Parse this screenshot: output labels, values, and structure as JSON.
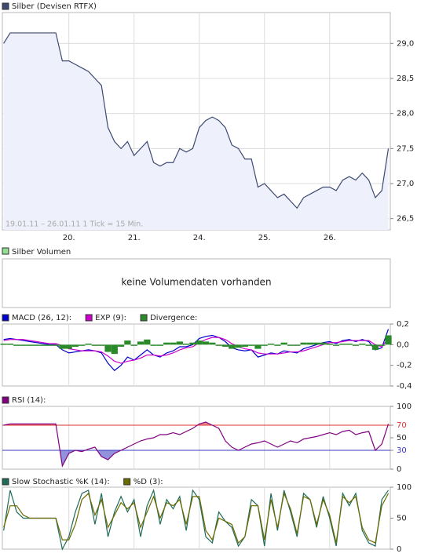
{
  "chart_data": [
    {
      "type": "area",
      "annotation": "19.01.11 – 26.01.11   1 Tick = 15 Min.",
      "x": [
        0,
        0.1,
        0.2,
        0.3,
        0.4,
        0.5,
        0.6,
        0.7,
        0.8,
        0.9,
        1,
        1.1,
        1.2,
        1.3,
        1.4,
        1.5,
        1.6,
        1.7,
        1.8,
        1.9,
        2,
        2.1,
        2.2,
        2.3,
        2.4,
        2.5,
        2.6,
        2.7,
        2.8,
        2.9,
        3,
        3.1,
        3.2,
        3.3,
        3.4,
        3.5,
        3.6,
        3.7,
        3.8,
        3.9,
        4,
        4.1,
        4.2,
        4.3,
        4.4,
        4.5,
        4.6,
        4.7,
        4.8,
        4.9,
        5,
        5.1,
        5.2,
        5.3,
        5.4,
        5.5,
        5.6,
        5.7,
        5.8,
        5.9
      ],
      "series": [
        {
          "name": "Silber (Devisen RTFX)",
          "color": "#3d4a70",
          "fill_color": "#eef0fb",
          "values": [
            29.0,
            29.15,
            29.15,
            29.15,
            29.15,
            29.15,
            29.15,
            29.15,
            29.15,
            28.75,
            28.75,
            28.7,
            28.65,
            28.6,
            28.5,
            28.4,
            27.8,
            27.6,
            27.5,
            27.6,
            27.4,
            27.5,
            27.6,
            27.3,
            27.25,
            27.3,
            27.3,
            27.5,
            27.45,
            27.5,
            27.8,
            27.9,
            27.95,
            27.9,
            27.8,
            27.55,
            27.5,
            27.35,
            27.35,
            26.95,
            27.0,
            26.9,
            26.8,
            26.85,
            26.75,
            26.65,
            26.8,
            26.85,
            26.9,
            26.95,
            26.95,
            26.9,
            27.05,
            27.1,
            27.05,
            27.15,
            27.05,
            26.8,
            26.9,
            27.5
          ]
        }
      ],
      "xlim": [
        -0.02,
        5.93
      ],
      "xticks": [
        {
          "value": 1,
          "label": "20."
        },
        {
          "value": 2,
          "label": "21."
        },
        {
          "value": 3,
          "label": "24."
        },
        {
          "value": 4,
          "label": "25."
        },
        {
          "value": 5,
          "label": "26."
        }
      ],
      "ylim": [
        26.34,
        29.44
      ],
      "yticks": [
        {
          "value": 26.5,
          "label": "26,5"
        },
        {
          "value": 27.0,
          "label": "27,0"
        },
        {
          "value": 27.5,
          "label": "27,5"
        },
        {
          "value": 28.0,
          "label": "28,0"
        },
        {
          "value": 28.5,
          "label": "28,5"
        },
        {
          "value": 29.0,
          "label": "29,0"
        }
      ],
      "grid": true
    },
    {
      "type": "line",
      "x": [
        0,
        0.1,
        0.2,
        0.3,
        0.4,
        0.5,
        0.6,
        0.7,
        0.8,
        0.9,
        1,
        1.1,
        1.2,
        1.3,
        1.4,
        1.5,
        1.6,
        1.7,
        1.8,
        1.9,
        2,
        2.1,
        2.2,
        2.3,
        2.4,
        2.5,
        2.6,
        2.7,
        2.8,
        2.9,
        3,
        3.1,
        3.2,
        3.3,
        3.4,
        3.5,
        3.6,
        3.7,
        3.8,
        3.9,
        4,
        4.1,
        4.2,
        4.3,
        4.4,
        4.5,
        4.6,
        4.7,
        4.8,
        4.9,
        5,
        5.1,
        5.2,
        5.3,
        5.4,
        5.5,
        5.6,
        5.7,
        5.8,
        5.9
      ],
      "series": [
        {
          "name": "MACD (26, 12):",
          "color": "#0000cc",
          "values": [
            0.05,
            0.06,
            0.05,
            0.04,
            0.03,
            0.02,
            0.01,
            0.0,
            0.0,
            -0.05,
            -0.08,
            -0.07,
            -0.06,
            -0.05,
            -0.06,
            -0.08,
            -0.18,
            -0.25,
            -0.2,
            -0.12,
            -0.15,
            -0.1,
            -0.05,
            -0.1,
            -0.12,
            -0.08,
            -0.06,
            -0.02,
            -0.02,
            0.0,
            0.06,
            0.08,
            0.09,
            0.07,
            0.03,
            -0.03,
            -0.05,
            -0.06,
            -0.05,
            -0.12,
            -0.1,
            -0.08,
            -0.09,
            -0.06,
            -0.07,
            -0.08,
            -0.04,
            -0.02,
            0.0,
            0.02,
            0.03,
            0.01,
            0.04,
            0.05,
            0.03,
            0.05,
            0.03,
            -0.05,
            -0.03,
            0.15
          ]
        },
        {
          "name": "EXP (9):",
          "color": "#cc00cc",
          "values": [
            0.04,
            0.05,
            0.05,
            0.05,
            0.04,
            0.03,
            0.02,
            0.01,
            0.01,
            -0.01,
            -0.04,
            -0.05,
            -0.06,
            -0.06,
            -0.06,
            -0.07,
            -0.11,
            -0.16,
            -0.18,
            -0.16,
            -0.15,
            -0.13,
            -0.1,
            -0.1,
            -0.11,
            -0.1,
            -0.08,
            -0.05,
            -0.03,
            -0.02,
            0.02,
            0.05,
            0.07,
            0.07,
            0.05,
            0.01,
            -0.02,
            -0.04,
            -0.05,
            -0.08,
            -0.09,
            -0.09,
            -0.09,
            -0.08,
            -0.07,
            -0.07,
            -0.06,
            -0.04,
            -0.02,
            0.0,
            0.02,
            0.02,
            0.03,
            0.04,
            0.04,
            0.04,
            0.04,
            0.0,
            -0.02,
            0.06
          ]
        },
        {
          "name": "Divergence:",
          "color": "#2a8a2a",
          "style": "bar",
          "values": [
            0.01,
            0.01,
            0,
            -0.01,
            -0.01,
            -0.01,
            -0.01,
            -0.01,
            -0.01,
            -0.04,
            -0.04,
            -0.02,
            0,
            0.01,
            0,
            -0.01,
            -0.07,
            -0.09,
            -0.02,
            0.04,
            0,
            0.03,
            0.05,
            0,
            -0.01,
            0.02,
            0.02,
            0.03,
            0.01,
            0.02,
            0.04,
            0.03,
            0.02,
            0,
            -0.02,
            -0.04,
            -0.03,
            -0.02,
            0,
            -0.04,
            -0.01,
            0.01,
            0,
            0.02,
            0,
            -0.01,
            0.02,
            0.02,
            0.02,
            0.02,
            0.01,
            -0.01,
            0.01,
            0.01,
            -0.01,
            0.01,
            -0.01,
            -0.05,
            -0.01,
            0.09
          ]
        }
      ],
      "xlim": [
        -0.02,
        5.93
      ],
      "ylim": [
        -0.4,
        0.2
      ],
      "yticks": [
        {
          "value": -0.4,
          "label": "-0,4"
        },
        {
          "value": -0.2,
          "label": "-0,2"
        },
        {
          "value": 0.0,
          "label": "0,0"
        },
        {
          "value": 0.2,
          "label": "0,2"
        }
      ]
    },
    {
      "type": "line",
      "x": [
        0,
        0.1,
        0.2,
        0.3,
        0.4,
        0.5,
        0.6,
        0.7,
        0.8,
        0.9,
        1,
        1.1,
        1.2,
        1.3,
        1.4,
        1.5,
        1.6,
        1.7,
        1.8,
        1.9,
        2,
        2.1,
        2.2,
        2.3,
        2.4,
        2.5,
        2.6,
        2.7,
        2.8,
        2.9,
        3,
        3.1,
        3.2,
        3.3,
        3.4,
        3.5,
        3.6,
        3.7,
        3.8,
        3.9,
        4,
        4.1,
        4.2,
        4.3,
        4.4,
        4.5,
        4.6,
        4.7,
        4.8,
        4.9,
        5,
        5.1,
        5.2,
        5.3,
        5.4,
        5.5,
        5.6,
        5.7,
        5.8,
        5.9
      ],
      "series": [
        {
          "name": "RSI (14):",
          "color": "#800080",
          "values": [
            70,
            72,
            72,
            72,
            72,
            72,
            72,
            72,
            72,
            5,
            25,
            30,
            28,
            32,
            35,
            20,
            15,
            25,
            30,
            35,
            40,
            45,
            48,
            50,
            55,
            55,
            58,
            55,
            60,
            65,
            72,
            75,
            70,
            65,
            45,
            35,
            30,
            35,
            40,
            42,
            45,
            40,
            35,
            40,
            45,
            42,
            48,
            50,
            52,
            55,
            58,
            55,
            60,
            62,
            55,
            58,
            60,
            30,
            40,
            72
          ]
        }
      ],
      "reference_lines": [
        {
          "value": 70,
          "color": "#e03030",
          "shade": "above"
        },
        {
          "value": 30,
          "color": "#3838c0",
          "shade": "below"
        }
      ],
      "xlim": [
        -0.02,
        5.93
      ],
      "ylim": [
        0,
        100
      ],
      "yticks": [
        0,
        30,
        50,
        70,
        100
      ]
    },
    {
      "type": "line",
      "x": [
        0,
        0.1,
        0.2,
        0.3,
        0.4,
        0.5,
        0.6,
        0.7,
        0.8,
        0.9,
        1,
        1.1,
        1.2,
        1.3,
        1.4,
        1.5,
        1.6,
        1.7,
        1.8,
        1.9,
        2,
        2.1,
        2.2,
        2.3,
        2.4,
        2.5,
        2.6,
        2.7,
        2.8,
        2.9,
        3,
        3.1,
        3.2,
        3.3,
        3.4,
        3.5,
        3.6,
        3.7,
        3.8,
        3.9,
        4,
        4.1,
        4.2,
        4.3,
        4.4,
        4.5,
        4.6,
        4.7,
        4.8,
        4.9,
        5,
        5.1,
        5.2,
        5.3,
        5.4,
        5.5,
        5.6,
        5.7,
        5.8,
        5.9
      ],
      "series": [
        {
          "name": "Slow Stochastic %K (14):",
          "color": "#1f6b5a",
          "values": [
            30,
            95,
            60,
            50,
            50,
            50,
            50,
            50,
            50,
            0,
            20,
            60,
            90,
            95,
            40,
            90,
            20,
            60,
            85,
            60,
            80,
            20,
            70,
            95,
            40,
            80,
            65,
            85,
            30,
            95,
            80,
            20,
            10,
            60,
            45,
            35,
            5,
            20,
            80,
            70,
            5,
            90,
            30,
            95,
            60,
            20,
            90,
            80,
            35,
            85,
            50,
            5,
            90,
            70,
            90,
            30,
            10,
            5,
            80,
            95
          ]
        },
        {
          "name": "%D (3):",
          "color": "#6b6b00",
          "values": [
            35,
            70,
            70,
            55,
            50,
            50,
            50,
            50,
            50,
            15,
            15,
            40,
            80,
            90,
            55,
            80,
            35,
            55,
            75,
            65,
            75,
            35,
            60,
            85,
            50,
            75,
            70,
            80,
            40,
            85,
            85,
            30,
            15,
            50,
            45,
            40,
            10,
            20,
            70,
            70,
            15,
            80,
            35,
            90,
            65,
            25,
            85,
            80,
            40,
            80,
            55,
            10,
            85,
            75,
            85,
            35,
            15,
            10,
            70,
            90
          ]
        }
      ],
      "xlim": [
        -0.02,
        5.93
      ],
      "ylim": [
        0,
        100
      ],
      "yticks": [
        0,
        50,
        100
      ]
    }
  ],
  "volume": {
    "title": "Silber Volumen",
    "message": "keine Volumendaten vorhanden"
  }
}
